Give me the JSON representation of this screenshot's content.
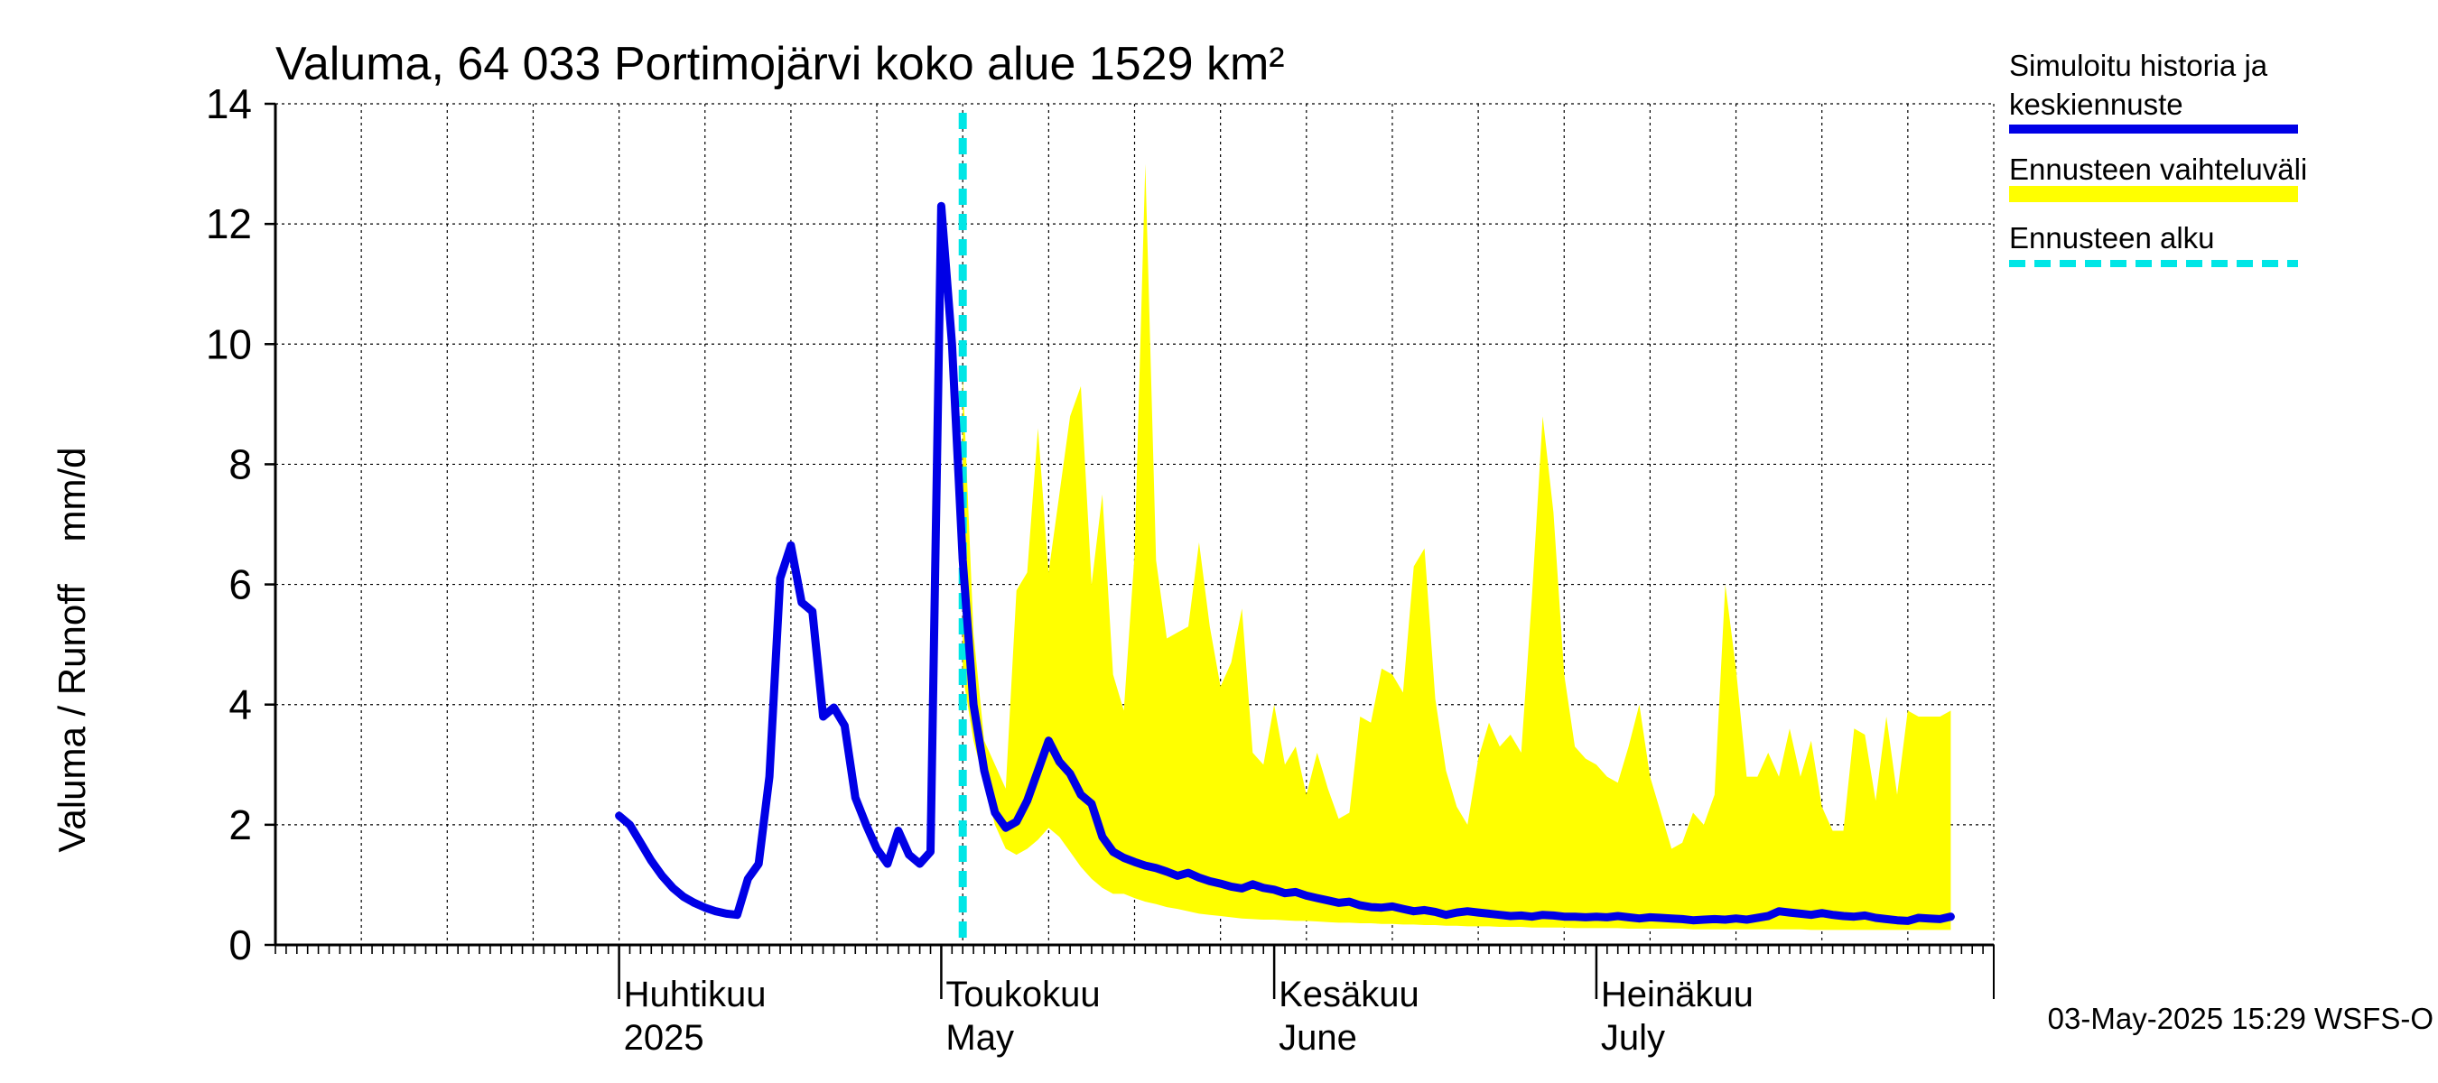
{
  "chart_data": {
    "type": "area",
    "title": "Valuma, 64 033 Portimojärvi koko alue 1529 km²",
    "ylabel": "Valuma / Runoff    mm/d",
    "ylim": [
      0,
      14
    ],
    "yticks": [
      0,
      2,
      4,
      6,
      8,
      10,
      12,
      14
    ],
    "x_domain_days": [
      -32,
      128
    ],
    "x_origin": "2025-04-01",
    "months": [
      {
        "day": 0,
        "fi": "Huhtikuu",
        "en": "2025"
      },
      {
        "day": 30,
        "fi": "Toukokuu",
        "en": "May"
      },
      {
        "day": 61,
        "fi": "Kesäkuu",
        "en": "June"
      },
      {
        "day": 91,
        "fi": "Heinäkuu",
        "en": "July"
      }
    ],
    "forecast_start_day": 32,
    "series": [
      {
        "name": "Simuloitu historia ja keskiennuste",
        "color": "#0000e6",
        "points": [
          [
            0,
            2.15
          ],
          [
            1,
            2.0
          ],
          [
            2,
            1.7
          ],
          [
            3,
            1.4
          ],
          [
            4,
            1.15
          ],
          [
            5,
            0.95
          ],
          [
            6,
            0.8
          ],
          [
            7,
            0.7
          ],
          [
            8,
            0.62
          ],
          [
            9,
            0.56
          ],
          [
            10,
            0.52
          ],
          [
            11,
            0.5
          ],
          [
            12,
            1.1
          ],
          [
            13,
            1.35
          ],
          [
            14,
            2.8
          ],
          [
            15,
            6.1
          ],
          [
            16,
            6.65
          ],
          [
            17,
            5.7
          ],
          [
            18,
            5.55
          ],
          [
            19,
            3.8
          ],
          [
            20,
            3.95
          ],
          [
            21,
            3.65
          ],
          [
            22,
            2.45
          ],
          [
            23,
            2.0
          ],
          [
            24,
            1.6
          ],
          [
            25,
            1.35
          ],
          [
            26,
            1.9
          ],
          [
            27,
            1.5
          ],
          [
            28,
            1.35
          ],
          [
            29,
            1.55
          ],
          [
            30,
            12.3
          ],
          [
            31,
            10.0
          ],
          [
            32,
            6.4
          ],
          [
            33,
            4.0
          ],
          [
            34,
            2.9
          ],
          [
            35,
            2.2
          ],
          [
            36,
            1.95
          ],
          [
            37,
            2.05
          ],
          [
            38,
            2.4
          ],
          [
            39,
            2.9
          ],
          [
            40,
            3.4
          ],
          [
            41,
            3.05
          ],
          [
            42,
            2.85
          ],
          [
            43,
            2.5
          ],
          [
            44,
            2.35
          ],
          [
            45,
            1.8
          ],
          [
            46,
            1.55
          ],
          [
            47,
            1.45
          ],
          [
            48,
            1.38
          ],
          [
            49,
            1.32
          ],
          [
            50,
            1.28
          ],
          [
            51,
            1.22
          ],
          [
            52,
            1.15
          ],
          [
            53,
            1.2
          ],
          [
            54,
            1.12
          ],
          [
            55,
            1.06
          ],
          [
            56,
            1.02
          ],
          [
            57,
            0.97
          ],
          [
            58,
            0.94
          ],
          [
            59,
            1.01
          ],
          [
            60,
            0.95
          ],
          [
            61,
            0.92
          ],
          [
            62,
            0.86
          ],
          [
            63,
            0.88
          ],
          [
            64,
            0.82
          ],
          [
            65,
            0.78
          ],
          [
            66,
            0.74
          ],
          [
            67,
            0.7
          ],
          [
            68,
            0.72
          ],
          [
            69,
            0.66
          ],
          [
            70,
            0.63
          ],
          [
            71,
            0.62
          ],
          [
            72,
            0.64
          ],
          [
            73,
            0.6
          ],
          [
            74,
            0.56
          ],
          [
            75,
            0.58
          ],
          [
            76,
            0.55
          ],
          [
            77,
            0.5
          ],
          [
            78,
            0.54
          ],
          [
            79,
            0.56
          ],
          [
            80,
            0.54
          ],
          [
            81,
            0.52
          ],
          [
            82,
            0.5
          ],
          [
            83,
            0.48
          ],
          [
            84,
            0.49
          ],
          [
            85,
            0.47
          ],
          [
            86,
            0.5
          ],
          [
            87,
            0.49
          ],
          [
            88,
            0.47
          ],
          [
            89,
            0.47
          ],
          [
            90,
            0.46
          ],
          [
            91,
            0.47
          ],
          [
            92,
            0.46
          ],
          [
            93,
            0.48
          ],
          [
            94,
            0.46
          ],
          [
            95,
            0.44
          ],
          [
            96,
            0.46
          ],
          [
            97,
            0.45
          ],
          [
            98,
            0.44
          ],
          [
            99,
            0.43
          ],
          [
            100,
            0.41
          ],
          [
            101,
            0.42
          ],
          [
            102,
            0.43
          ],
          [
            103,
            0.42
          ],
          [
            104,
            0.44
          ],
          [
            105,
            0.42
          ],
          [
            106,
            0.45
          ],
          [
            107,
            0.48
          ],
          [
            108,
            0.56
          ],
          [
            109,
            0.54
          ],
          [
            110,
            0.52
          ],
          [
            111,
            0.5
          ],
          [
            112,
            0.53
          ],
          [
            113,
            0.5
          ],
          [
            114,
            0.48
          ],
          [
            115,
            0.47
          ],
          [
            116,
            0.49
          ],
          [
            117,
            0.45
          ],
          [
            118,
            0.43
          ],
          [
            119,
            0.41
          ],
          [
            120,
            0.4
          ],
          [
            121,
            0.45
          ],
          [
            122,
            0.44
          ],
          [
            123,
            0.43
          ],
          [
            124,
            0.47
          ]
        ]
      },
      {
        "name": "Ennusteen vaihteluväli",
        "color": "#ffff00",
        "points": [
          [
            32,
            4.5,
            9.5
          ],
          [
            33,
            3.4,
            5.2
          ],
          [
            34,
            2.7,
            3.4
          ],
          [
            35,
            2.0,
            3.0
          ],
          [
            36,
            1.6,
            2.6
          ],
          [
            37,
            1.5,
            5.9
          ],
          [
            38,
            1.6,
            6.2
          ],
          [
            39,
            1.75,
            8.6
          ],
          [
            40,
            1.95,
            6.2
          ],
          [
            41,
            1.8,
            7.5
          ],
          [
            42,
            1.55,
            8.8
          ],
          [
            43,
            1.3,
            9.3
          ],
          [
            44,
            1.1,
            6.0
          ],
          [
            45,
            0.95,
            7.5
          ],
          [
            46,
            0.85,
            4.5
          ],
          [
            47,
            0.85,
            3.9
          ],
          [
            48,
            0.78,
            6.5
          ],
          [
            49,
            0.72,
            13.0
          ],
          [
            50,
            0.68,
            6.4
          ],
          [
            51,
            0.63,
            5.1
          ],
          [
            52,
            0.6,
            5.2
          ],
          [
            53,
            0.56,
            5.3
          ],
          [
            54,
            0.52,
            6.7
          ],
          [
            55,
            0.5,
            5.3
          ],
          [
            56,
            0.48,
            4.3
          ],
          [
            57,
            0.46,
            4.7
          ],
          [
            58,
            0.44,
            5.6
          ],
          [
            59,
            0.43,
            3.2
          ],
          [
            60,
            0.42,
            3.0
          ],
          [
            61,
            0.42,
            4.0
          ],
          [
            62,
            0.41,
            3.0
          ],
          [
            63,
            0.4,
            3.3
          ],
          [
            64,
            0.4,
            2.5
          ],
          [
            65,
            0.39,
            3.2
          ],
          [
            66,
            0.38,
            2.6
          ],
          [
            67,
            0.37,
            2.1
          ],
          [
            68,
            0.37,
            2.2
          ],
          [
            69,
            0.36,
            3.8
          ],
          [
            70,
            0.36,
            3.7
          ],
          [
            71,
            0.35,
            4.6
          ],
          [
            72,
            0.35,
            4.5
          ],
          [
            73,
            0.34,
            4.2
          ],
          [
            74,
            0.34,
            6.3
          ],
          [
            75,
            0.33,
            6.6
          ],
          [
            76,
            0.33,
            4.1
          ],
          [
            77,
            0.32,
            2.9
          ],
          [
            78,
            0.32,
            2.3
          ],
          [
            79,
            0.31,
            2.0
          ],
          [
            80,
            0.31,
            3.1
          ],
          [
            81,
            0.31,
            3.7
          ],
          [
            82,
            0.3,
            3.3
          ],
          [
            83,
            0.3,
            3.5
          ],
          [
            84,
            0.3,
            3.2
          ],
          [
            85,
            0.29,
            5.8
          ],
          [
            86,
            0.29,
            8.8
          ],
          [
            87,
            0.29,
            7.2
          ],
          [
            88,
            0.29,
            4.5
          ],
          [
            89,
            0.28,
            3.3
          ],
          [
            90,
            0.28,
            3.1
          ],
          [
            91,
            0.28,
            3.0
          ],
          [
            92,
            0.28,
            2.8
          ],
          [
            93,
            0.28,
            2.7
          ],
          [
            94,
            0.27,
            3.3
          ],
          [
            95,
            0.27,
            4.0
          ],
          [
            96,
            0.27,
            2.8
          ],
          [
            97,
            0.27,
            2.2
          ],
          [
            98,
            0.27,
            1.6
          ],
          [
            99,
            0.27,
            1.7
          ],
          [
            100,
            0.26,
            2.2
          ],
          [
            101,
            0.26,
            2.0
          ],
          [
            102,
            0.26,
            2.5
          ],
          [
            103,
            0.26,
            6.0
          ],
          [
            104,
            0.26,
            4.6
          ],
          [
            105,
            0.26,
            2.8
          ],
          [
            106,
            0.26,
            2.8
          ],
          [
            107,
            0.26,
            3.2
          ],
          [
            108,
            0.26,
            2.8
          ],
          [
            109,
            0.26,
            3.6
          ],
          [
            110,
            0.26,
            2.8
          ],
          [
            111,
            0.25,
            3.4
          ],
          [
            112,
            0.25,
            2.3
          ],
          [
            113,
            0.25,
            1.9
          ],
          [
            114,
            0.25,
            1.9
          ],
          [
            115,
            0.25,
            3.6
          ],
          [
            116,
            0.25,
            3.5
          ],
          [
            117,
            0.25,
            2.4
          ],
          [
            118,
            0.25,
            3.8
          ],
          [
            119,
            0.25,
            2.5
          ],
          [
            120,
            0.25,
            3.9
          ],
          [
            121,
            0.25,
            3.8
          ],
          [
            122,
            0.25,
            3.8
          ],
          [
            123,
            0.25,
            3.8
          ],
          [
            124,
            0.25,
            3.9
          ]
        ]
      },
      {
        "name": "Ennusteen alku",
        "color": "#00e6e6"
      }
    ]
  },
  "legend": {
    "history_label_line1": "Simuloitu historia ja",
    "history_label_line2": "keskiennuste",
    "range_label": "Ennusteen vaihteluväli",
    "start_label": "Ennusteen alku"
  },
  "footer": "03-May-2025 15:29 WSFS-O"
}
